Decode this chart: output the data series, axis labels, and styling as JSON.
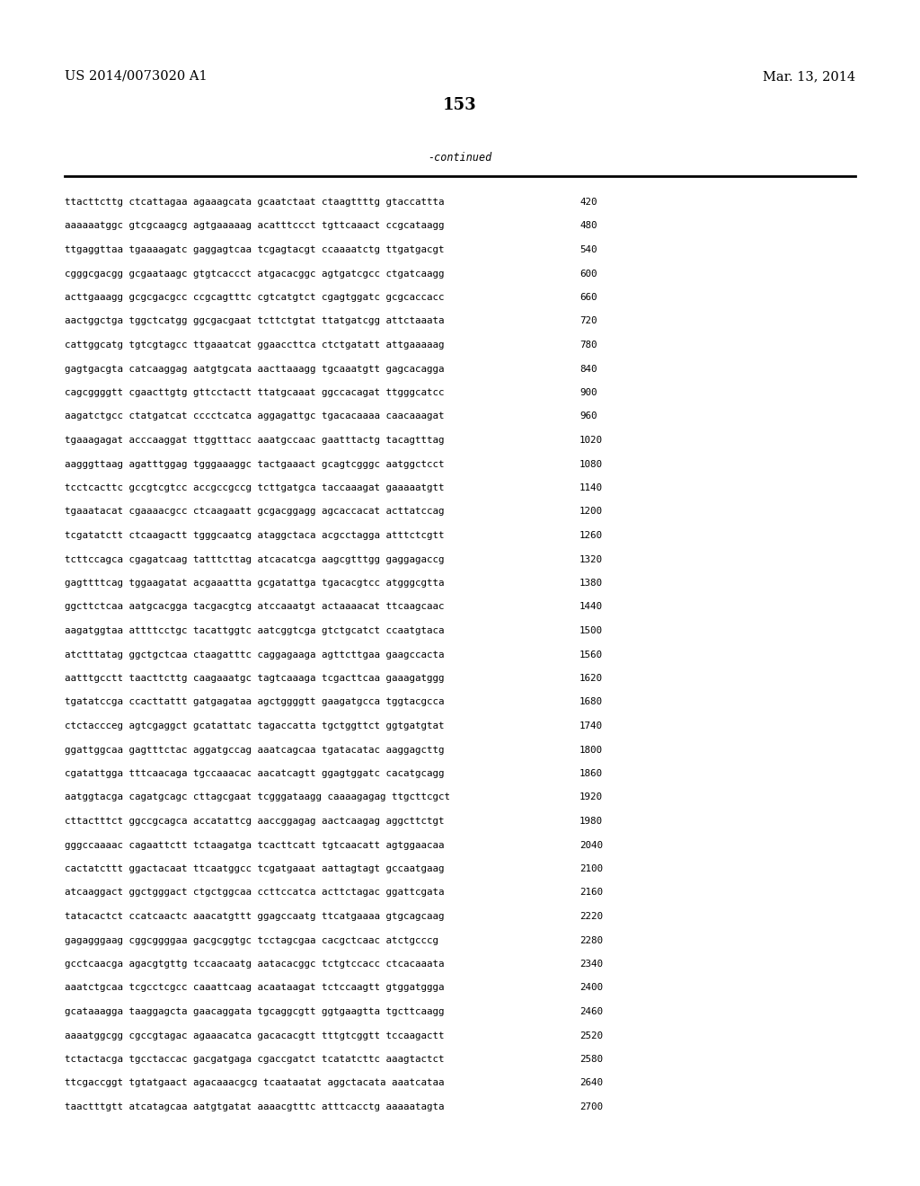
{
  "header_left": "US 2014/0073020 A1",
  "header_right": "Mar. 13, 2014",
  "page_number": "153",
  "continued_label": "-continued",
  "sequence_lines": [
    [
      "ttacttcttg ctcattagaa agaaagcata gcaatctaat ctaagttttg gtaccattta",
      "420"
    ],
    [
      "aaaaaatggc gtcgcaagcg agtgaaaaag acatttccct tgttcaaact ccgcataagg",
      "480"
    ],
    [
      "ttgaggttaa tgaaaagatc gaggagtcaa tcgagtacgt ccaaaatctg ttgatgacgt",
      "540"
    ],
    [
      "cgggcgacgg gcgaataagc gtgtcaccct atgacacggc agtgatcgcc ctgatcaagg",
      "600"
    ],
    [
      "acttgaaagg gcgcgacgcc ccgcagtttc cgtcatgtct cgagtggatc gcgcaccacc",
      "660"
    ],
    [
      "aactggctga tggctcatgg ggcgacgaat tcttctgtat ttatgatcgg attctaaata",
      "720"
    ],
    [
      "cattggcatg tgtcgtagcc ttgaaatcat ggaaccttca ctctgatatt attgaaaaag",
      "780"
    ],
    [
      "gagtgacgta catcaaggag aatgtgcata aacttaaagg tgcaaatgtt gagcacagga",
      "840"
    ],
    [
      "cagcggggtt cgaacttgtg gttcctactt ttatgcaaat ggccacagat ttgggcatcc",
      "900"
    ],
    [
      "aagatctgcc ctatgatcat cccctcatca aggagattgc tgacacaaaa caacaaagat",
      "960"
    ],
    [
      "tgaaagagat acccaaggat ttggtttacc aaatgccaac gaatttactg tacagtttag",
      "1020"
    ],
    [
      "aagggttaag agatttggag tgggaaaggc tactgaaact gcagtcgggc aatggctcct",
      "1080"
    ],
    [
      "tcctcacttc gccgtcgtcc accgccgccg tcttgatgca taccaaagat gaaaaatgtt",
      "1140"
    ],
    [
      "tgaaatacat cgaaaacgcc ctcaagaatt gcgacggagg agcaccacat acttatccag",
      "1200"
    ],
    [
      "tcgatatctt ctcaagactt tgggcaatcg ataggctaca acgcctagga atttctcgtt",
      "1260"
    ],
    [
      "tcttccagca cgagatcaag tatttcttag atcacatcga aagcgtttgg gaggagaccg",
      "1320"
    ],
    [
      "gagttttcag tggaagatat acgaaattta gcgatattga tgacacgtcc atgggcgtta",
      "1380"
    ],
    [
      "ggcttctcaa aatgcacgga tacgacgtcg atccaaatgt actaaaacat ttcaagcaac",
      "1440"
    ],
    [
      "aagatggtaa attttcctgc tacattggtc aatcggtcga gtctgcatct ccaatgtaca",
      "1500"
    ],
    [
      "atctttatag ggctgctcaa ctaagatttc caggagaaga agttcttgaa gaagccacta",
      "1560"
    ],
    [
      "aatttgcctt taacttcttg caagaaatgc tagtcaaaga tcgacttcaa gaaagatggg",
      "1620"
    ],
    [
      "tgatatccga ccacttattt gatgagataa agctggggtt gaagatgcca tggtacgcca",
      "1680"
    ],
    [
      "ctctaccceg agtcgaggct gcatattatc tagaccatta tgctggttct ggtgatgtat",
      "1740"
    ],
    [
      "ggattggcaa gagtttctac aggatgccag aaatcagcaa tgatacatac aaggagcttg",
      "1800"
    ],
    [
      "cgatattgga tttcaacaga tgccaaacac aacatcagtt ggagtggatc cacatgcagg",
      "1860"
    ],
    [
      "aatggtacga cagatgcagc cttagcgaat tcgggataagg caaaagagag ttgcttcgct",
      "1920"
    ],
    [
      "cttactttct ggccgcagca accatattcg aaccggagag aactcaagag aggcttctgt",
      "1980"
    ],
    [
      "gggccaaaac cagaattctt tctaagatga tcacttcatt tgtcaacatt agtggaacaa",
      "2040"
    ],
    [
      "cactatcttt ggactacaat ttcaatggcc tcgatgaaat aattagtagt gccaatgaag",
      "2100"
    ],
    [
      "atcaaggact ggctgggact ctgctggcaa ccttccatca acttctagac ggattcgata",
      "2160"
    ],
    [
      "tatacactct ccatcaactc aaacatgttt ggagccaatg ttcatgaaaa gtgcagcaag",
      "2220"
    ],
    [
      "gagagggaag cggcggggaa gacgcggtgc tcctagcgaa cacgctcaac atctgcccg",
      "2280"
    ],
    [
      "gcctcaacga agacgtgttg tccaacaatg aatacacggc tctgtccacc ctcacaaata",
      "2340"
    ],
    [
      "aaatctgcaa tcgcctcgcc caaattcaag acaataagat tctccaagtt gtggatggga",
      "2400"
    ],
    [
      "gcataaagga taaggagcta gaacaggata tgcaggcgtt ggtgaagtta tgcttcaagg",
      "2460"
    ],
    [
      "aaaatggcgg cgccgtagac agaaacatca gacacacgtt tttgtcggtt tccaagactt",
      "2520"
    ],
    [
      "tctactacga tgcctaccac gacgatgaga cgaccgatct tcatatcttc aaagtactct",
      "2580"
    ],
    [
      "ttcgaccggt tgtatgaact agacaaacgcg tcaataatat aggctacata aaatcataa",
      "2640"
    ],
    [
      "taactttgtt atcatagcaa aatgtgatat aaaacgtttc atttcacctg aaaaatagta",
      "2700"
    ]
  ],
  "background_color": "#ffffff",
  "text_color": "#000000",
  "mono_font_size": 7.8,
  "header_font_size": 10.5,
  "page_num_font_size": 13,
  "continued_font_size": 8.5
}
